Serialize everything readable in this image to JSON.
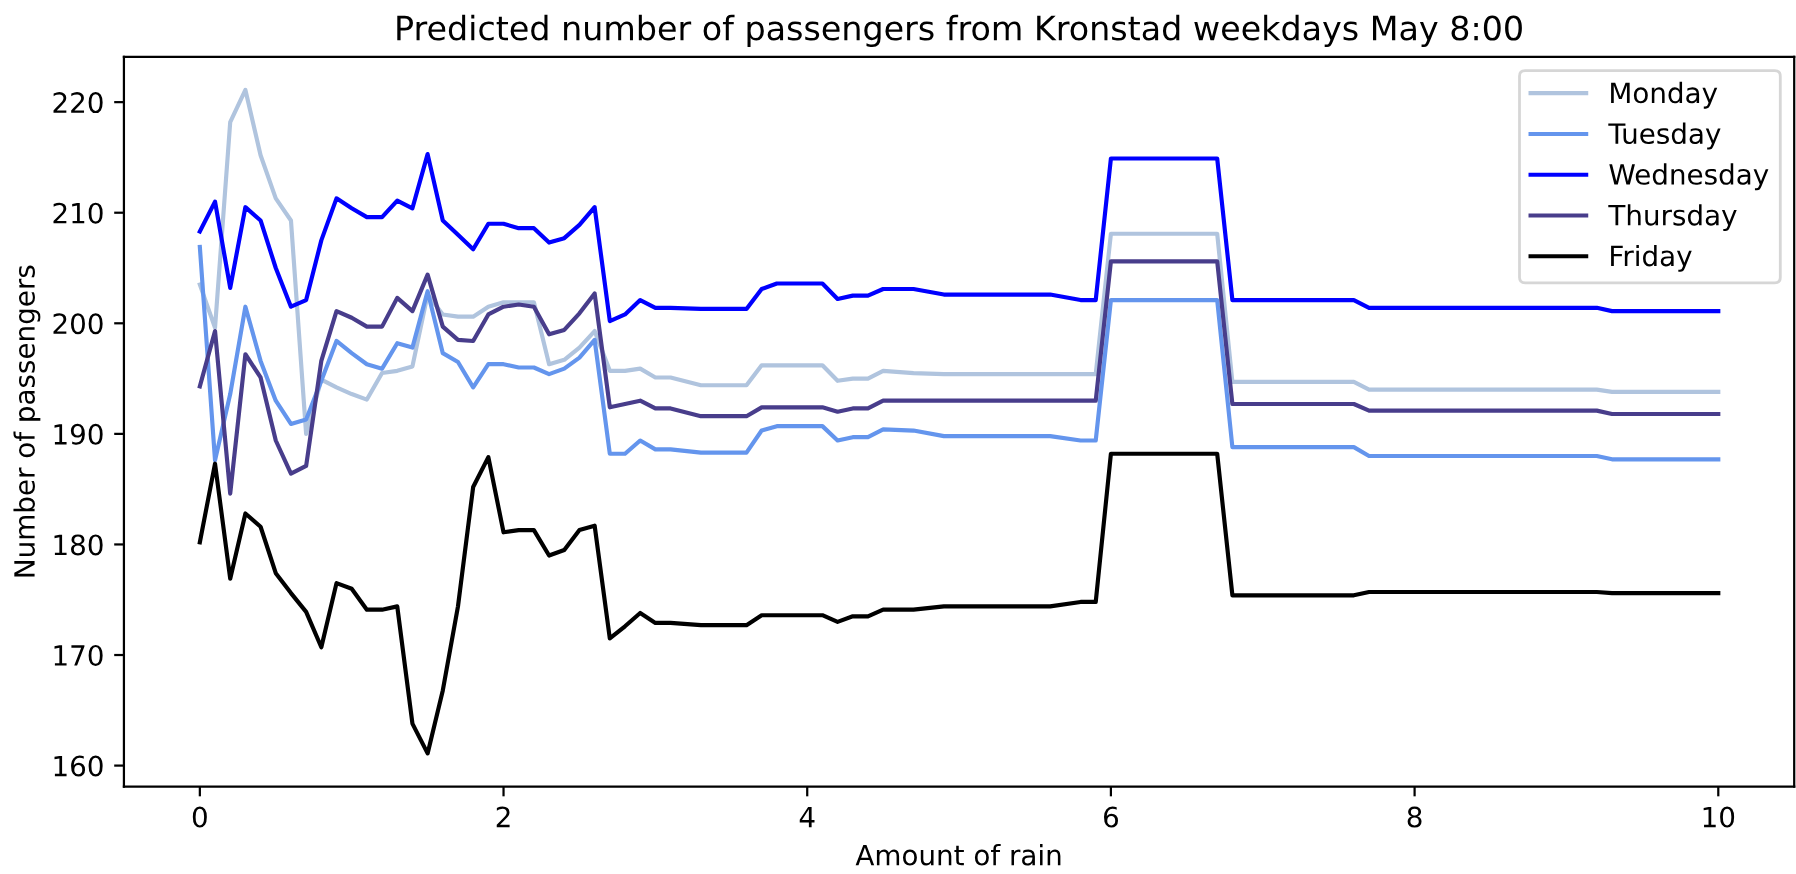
{
  "chart_data": {
    "type": "line",
    "title": "Predicted number of passengers from Kronstad weekdays May 8:00",
    "xlabel": "Amount of rain",
    "ylabel": "Number of passengers",
    "x": [
      0,
      0.1,
      0.2,
      0.3,
      0.4,
      0.5,
      0.6,
      0.7,
      0.8,
      0.9,
      1.0,
      1.1,
      1.2,
      1.3,
      1.4,
      1.5,
      1.6,
      1.7,
      1.8,
      1.9,
      2.0,
      2.1,
      2.2,
      2.3,
      2.4,
      2.5,
      2.6,
      2.7,
      2.8,
      2.9,
      3.0,
      3.1,
      3.3,
      3.6,
      3.7,
      3.8,
      4.1,
      4.2,
      4.3,
      4.4,
      4.5,
      4.7,
      4.9,
      5.6,
      5.8,
      5.9,
      6.0,
      6.7,
      6.8,
      7.6,
      7.7,
      9.2,
      9.3,
      10.0
    ],
    "series": [
      {
        "name": "Monday",
        "color": "#b0c4de",
        "values": [
          203.5,
          199.6,
          218.2,
          221.1,
          215.2,
          211.3,
          209.3,
          190.0,
          194.9,
          194.2,
          193.6,
          193.1,
          195.5,
          195.7,
          196.1,
          202.6,
          200.8,
          200.6,
          200.6,
          201.5,
          201.9,
          201.9,
          201.9,
          196.3,
          196.7,
          197.8,
          199.3,
          195.7,
          195.7,
          195.9,
          195.1,
          195.1,
          194.4,
          194.4,
          196.2,
          196.2,
          196.2,
          194.8,
          195.0,
          195.0,
          195.7,
          195.5,
          195.4,
          195.4,
          195.4,
          195.4,
          208.1,
          208.1,
          194.7,
          194.7,
          194.0,
          194.0,
          193.8,
          193.8
        ]
      },
      {
        "name": "Tuesday",
        "color": "#6495ed",
        "values": [
          206.9,
          187.6,
          193.6,
          201.5,
          196.6,
          193.0,
          190.9,
          191.3,
          194.8,
          198.4,
          197.3,
          196.3,
          195.9,
          198.2,
          197.8,
          202.9,
          197.3,
          196.5,
          194.2,
          196.3,
          196.3,
          196.0,
          196.0,
          195.4,
          195.9,
          196.9,
          198.5,
          188.2,
          188.2,
          189.4,
          188.6,
          188.6,
          188.3,
          188.3,
          190.3,
          190.7,
          190.7,
          189.4,
          189.7,
          189.7,
          190.4,
          190.3,
          189.8,
          189.8,
          189.4,
          189.4,
          202.1,
          202.1,
          188.8,
          188.8,
          188.0,
          188.0,
          187.7,
          187.7
        ]
      },
      {
        "name": "Wednesday",
        "color": "#0000ff",
        "values": [
          208.3,
          211.0,
          203.2,
          210.5,
          209.3,
          205.0,
          201.5,
          202.1,
          207.5,
          211.3,
          210.4,
          209.6,
          209.6,
          211.1,
          210.4,
          215.3,
          209.3,
          208.0,
          206.7,
          209.0,
          209.0,
          208.6,
          208.6,
          207.3,
          207.7,
          208.9,
          210.5,
          200.2,
          200.8,
          202.1,
          201.4,
          201.4,
          201.3,
          201.3,
          203.1,
          203.6,
          203.6,
          202.2,
          202.5,
          202.5,
          203.1,
          203.1,
          202.6,
          202.6,
          202.1,
          202.1,
          214.9,
          214.9,
          202.1,
          202.1,
          201.4,
          201.4,
          201.1,
          201.1
        ]
      },
      {
        "name": "Thursday",
        "color": "#483d8b",
        "values": [
          194.3,
          199.3,
          184.6,
          197.2,
          195.1,
          189.4,
          186.4,
          187.1,
          196.6,
          201.1,
          200.5,
          199.7,
          199.7,
          202.3,
          201.1,
          204.4,
          199.7,
          198.5,
          198.4,
          200.8,
          201.5,
          201.7,
          201.5,
          199.0,
          199.4,
          200.9,
          202.7,
          192.4,
          192.7,
          193.0,
          192.3,
          192.3,
          191.6,
          191.6,
          192.4,
          192.4,
          192.4,
          192.0,
          192.3,
          192.3,
          193.0,
          193.0,
          193.0,
          193.0,
          193.0,
          193.0,
          205.6,
          205.6,
          192.7,
          192.7,
          192.1,
          192.1,
          191.8,
          191.8
        ]
      },
      {
        "name": "Friday",
        "color": "#000000",
        "values": [
          180.2,
          187.3,
          176.9,
          182.8,
          181.6,
          177.4,
          175.6,
          173.9,
          170.7,
          176.5,
          176.0,
          174.1,
          174.1,
          174.4,
          163.8,
          161.1,
          166.8,
          174.4,
          185.2,
          187.9,
          181.1,
          181.3,
          181.3,
          179.0,
          179.5,
          181.3,
          181.7,
          171.5,
          172.6,
          173.8,
          172.9,
          172.9,
          172.7,
          172.7,
          173.6,
          173.6,
          173.6,
          173.0,
          173.5,
          173.5,
          174.1,
          174.1,
          174.4,
          174.4,
          174.8,
          174.8,
          188.2,
          188.2,
          175.4,
          175.4,
          175.7,
          175.7,
          175.6,
          175.6
        ]
      }
    ],
    "xlim": [
      -0.5,
      10.5
    ],
    "ylim": [
      158.1,
      224.1
    ],
    "xticks": [
      0,
      2,
      4,
      6,
      8,
      10
    ],
    "yticks": [
      160,
      170,
      180,
      190,
      200,
      210,
      220
    ],
    "grid": false,
    "legend": "top right",
    "marker": "none",
    "line_style": "solid"
  }
}
